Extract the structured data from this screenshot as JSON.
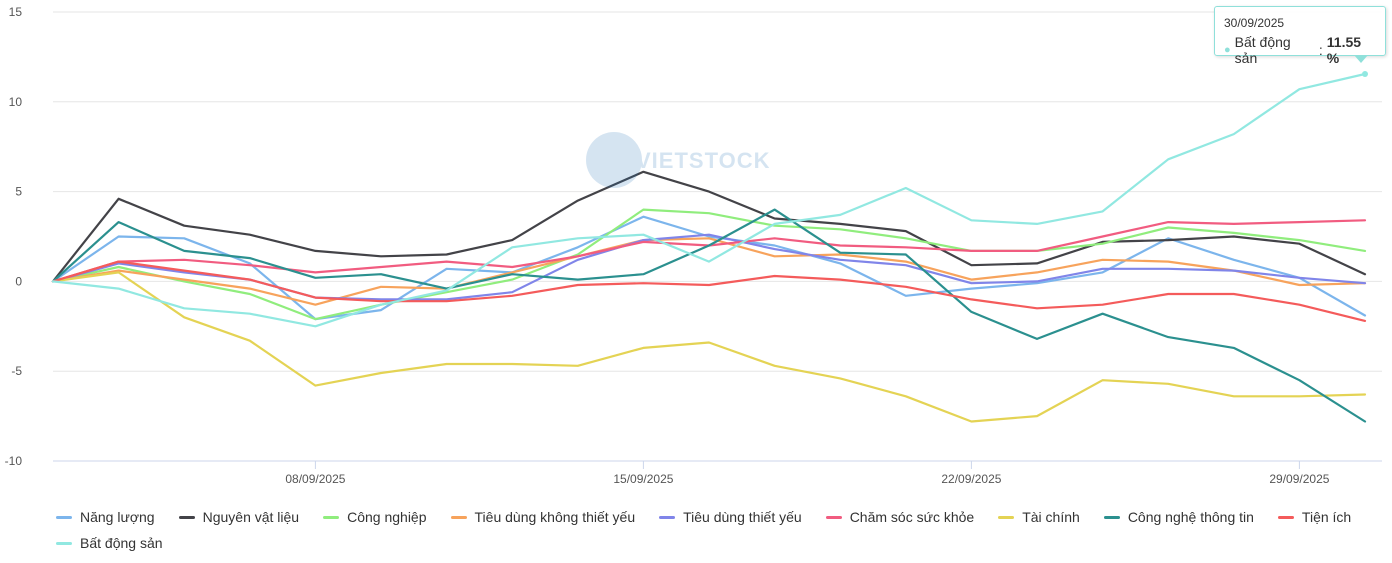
{
  "watermark_text": "VIETSTOCK",
  "tooltip": {
    "date": "30/09/2025",
    "series": "Bất động sản",
    "value": "11.55 %"
  },
  "chart_data": {
    "type": "line",
    "ylim": [
      -10,
      15
    ],
    "yticks": [
      15,
      10,
      5,
      0,
      -5,
      -10
    ],
    "ytick_labels": [
      "15",
      "10",
      "5",
      "0",
      "-5",
      "-10"
    ],
    "x": [
      "01/09",
      "02/09",
      "03/09",
      "04/09",
      "08/09",
      "09/09",
      "10/09",
      "11/09",
      "12/09",
      "15/09",
      "16/09",
      "17/09",
      "18/09",
      "19/09",
      "22/09",
      "23/09",
      "24/09",
      "25/09",
      "26/09",
      "29/09",
      "30/09"
    ],
    "xtick_labels": [
      {
        "index": 4,
        "label": "08/09/2025"
      },
      {
        "index": 9,
        "label": "15/09/2025"
      },
      {
        "index": 14,
        "label": "22/09/2025"
      },
      {
        "index": 19,
        "label": "29/09/2025"
      }
    ],
    "series": [
      {
        "name": "Năng lượng",
        "color": "#7cb5ec",
        "values": [
          0,
          2.5,
          2.4,
          1,
          -2.1,
          -1.6,
          0.7,
          0.5,
          1.9,
          3.6,
          2.5,
          2.0,
          1.0,
          -0.8,
          -0.4,
          -0.1,
          0.5,
          2.4,
          1.2,
          0.2,
          -1.9
        ]
      },
      {
        "name": "Nguyên vật liệu",
        "color": "#434348",
        "values": [
          0,
          4.6,
          3.1,
          2.6,
          1.7,
          1.4,
          1.5,
          2.3,
          4.5,
          6.1,
          5.0,
          3.5,
          3.2,
          2.8,
          0.9,
          1.0,
          2.2,
          2.3,
          2.5,
          2.1,
          0.4
        ]
      },
      {
        "name": "Công nghiệp",
        "color": "#90ed7d",
        "values": [
          0,
          0.8,
          0.0,
          -0.7,
          -2.1,
          -1.3,
          -0.6,
          0.1,
          1.5,
          4.0,
          3.8,
          3.1,
          2.9,
          2.4,
          1.7,
          1.7,
          2.1,
          3.0,
          2.7,
          2.3,
          1.7
        ]
      },
      {
        "name": "Tiêu dùng không thiết yếu",
        "color": "#f7a35c",
        "values": [
          0,
          0.6,
          0.1,
          -0.4,
          -1.3,
          -0.3,
          -0.4,
          0.5,
          1.4,
          2.3,
          2.4,
          1.4,
          1.5,
          1.1,
          0.1,
          0.5,
          1.2,
          1.1,
          0.6,
          -0.2,
          -0.1
        ]
      },
      {
        "name": "Tiêu dùng thiết yếu",
        "color": "#8085e9",
        "values": [
          0,
          1.0,
          0.5,
          0.1,
          -0.9,
          -1.0,
          -1.0,
          -0.6,
          1.2,
          2.3,
          2.6,
          1.8,
          1.2,
          0.9,
          -0.1,
          0.0,
          0.7,
          0.7,
          0.6,
          0.2,
          -0.1
        ]
      },
      {
        "name": "Chăm sóc sức khỏe",
        "color": "#f15c80",
        "values": [
          0,
          1.1,
          1.2,
          0.9,
          0.5,
          0.8,
          1.1,
          0.8,
          1.4,
          2.2,
          2.0,
          2.4,
          2.0,
          1.9,
          1.7,
          1.7,
          2.5,
          3.3,
          3.2,
          3.3,
          3.4
        ]
      },
      {
        "name": "Tài chính",
        "color": "#e4d354",
        "values": [
          0,
          0.5,
          -2.0,
          -3.3,
          -5.8,
          -5.1,
          -4.6,
          -4.6,
          -4.7,
          -3.7,
          -3.4,
          -4.7,
          -5.4,
          -6.4,
          -7.8,
          -7.5,
          -5.5,
          -5.7,
          -6.4,
          -6.4,
          -6.3
        ]
      },
      {
        "name": "Công nghệ thông tin",
        "color": "#2b908f",
        "values": [
          0,
          3.3,
          1.7,
          1.3,
          0.2,
          0.4,
          -0.4,
          0.4,
          0.1,
          0.4,
          2.0,
          4.0,
          1.6,
          1.5,
          -1.7,
          -3.2,
          -1.8,
          -3.1,
          -3.7,
          -5.5,
          -7.8
        ]
      },
      {
        "name": "Tiện ích",
        "color": "#f45b5b",
        "values": [
          0,
          1.1,
          0.6,
          0.1,
          -0.9,
          -1.1,
          -1.1,
          -0.8,
          -0.2,
          -0.1,
          -0.2,
          0.3,
          0.1,
          -0.3,
          -1.0,
          -1.5,
          -1.3,
          -0.7,
          -0.7,
          -1.3,
          -2.2
        ]
      },
      {
        "name": "Bất động sản",
        "color": "#91e8e1",
        "values": [
          0,
          -0.4,
          -1.5,
          -1.8,
          -2.5,
          -1.3,
          -0.5,
          1.9,
          2.4,
          2.6,
          1.1,
          3.2,
          3.7,
          5.2,
          3.4,
          3.2,
          3.9,
          6.8,
          8.2,
          10.7,
          11.55
        ]
      }
    ]
  }
}
